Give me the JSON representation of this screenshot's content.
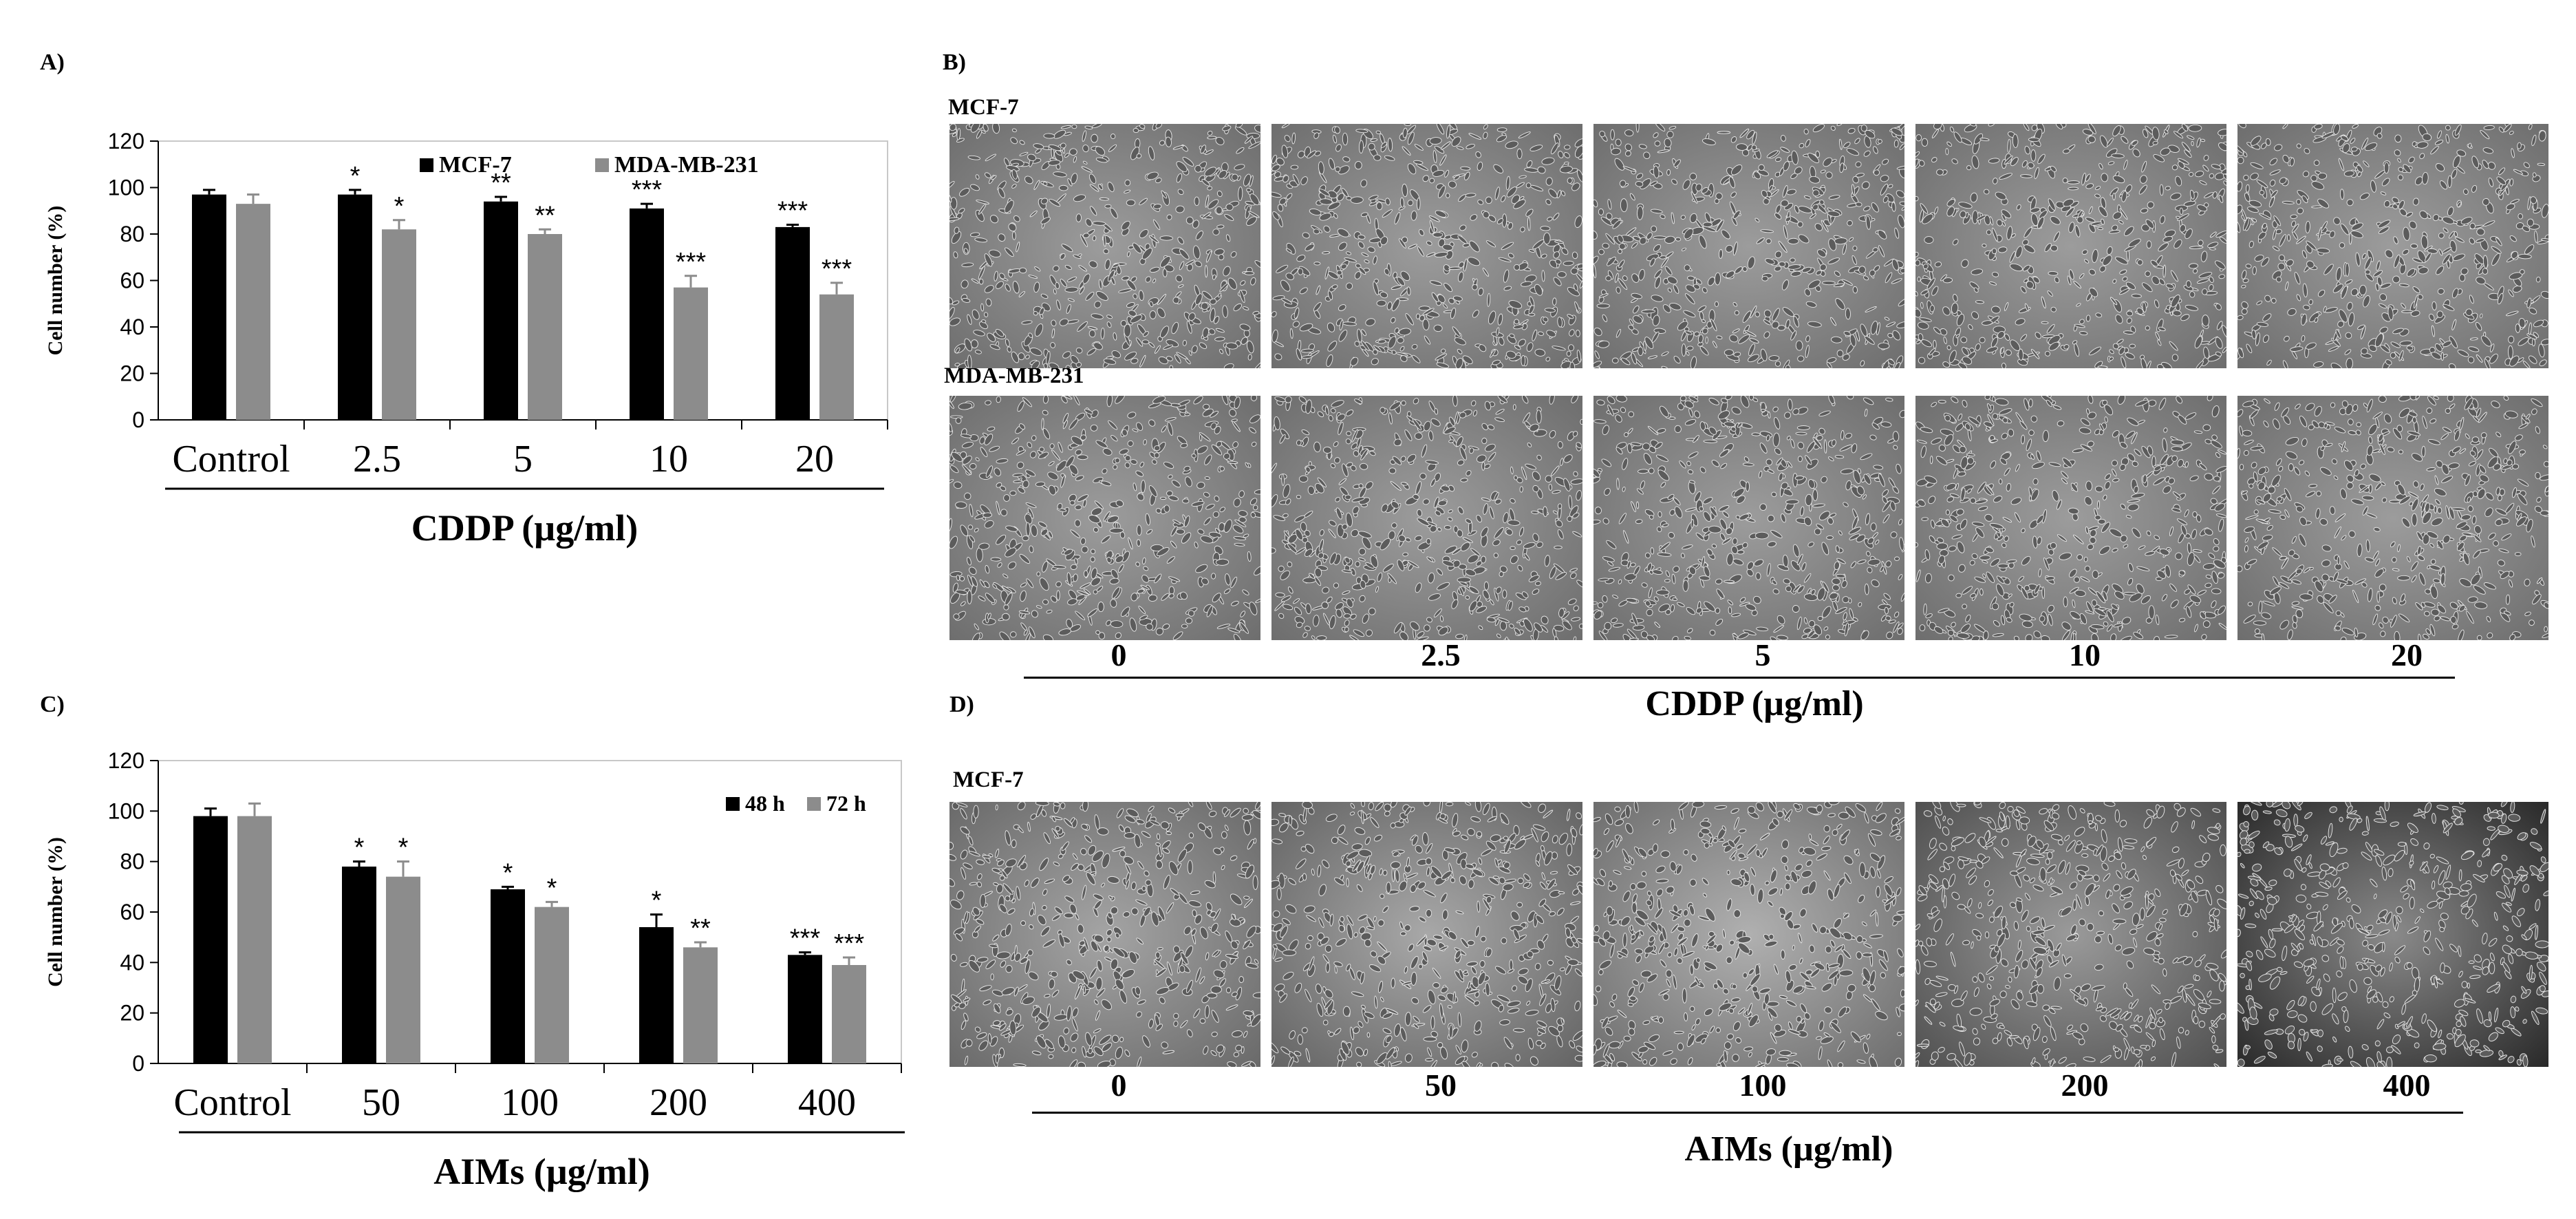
{
  "panels": {
    "a": "A)",
    "b": "B)",
    "c": "C)",
    "d": "D)"
  },
  "panel_b": {
    "row_labels": [
      "MCF-7",
      "MDA-MB-231"
    ],
    "concentrations": [
      "0",
      "2.5",
      "5",
      "10",
      "20"
    ],
    "axis_title": "CDDP (µg/ml)"
  },
  "panel_d": {
    "row_label": "MCF-7",
    "concentrations": [
      "0",
      "50",
      "100",
      "200",
      "400"
    ],
    "axis_title": "AIMs (µg/ml)"
  },
  "chart_data": [
    {
      "type": "bar",
      "panel": "A",
      "categories": [
        "Control",
        "2.5",
        "5",
        "10",
        "20"
      ],
      "category_title": "CDDP (µg/ml)",
      "ylabel": "Cell number (%)",
      "ylim": [
        0,
        120
      ],
      "yticks": [
        0,
        20,
        40,
        60,
        80,
        100,
        120
      ],
      "legend_position": "top-right",
      "series": [
        {
          "name": "MCF-7",
          "color": "#000000",
          "values": [
            97,
            97,
            94,
            91,
            83
          ],
          "errors": [
            2,
            2,
            2,
            2,
            1
          ],
          "significance": [
            "",
            "*",
            "**",
            "***",
            "***"
          ]
        },
        {
          "name": "MDA-MB-231",
          "color": "#8c8c8c",
          "values": [
            93,
            82,
            80,
            57,
            54
          ],
          "errors": [
            4,
            4,
            2,
            5,
            5
          ],
          "significance": [
            "",
            "*",
            "**",
            "***",
            "***"
          ]
        }
      ]
    },
    {
      "type": "bar",
      "panel": "C",
      "categories": [
        "Control",
        "50",
        "100",
        "200",
        "400"
      ],
      "category_title": "AIMs (µg/ml)",
      "ylabel": "Cell number (%)",
      "ylim": [
        0,
        120
      ],
      "yticks": [
        0,
        20,
        40,
        60,
        80,
        100,
        120
      ],
      "legend_position": "top-right",
      "series": [
        {
          "name": "48 h",
          "color": "#000000",
          "values": [
            98,
            78,
            69,
            54,
            43
          ],
          "errors": [
            3,
            2,
            1,
            5,
            1
          ],
          "significance": [
            "",
            "*",
            "*",
            "*",
            "***"
          ]
        },
        {
          "name": "72 h",
          "color": "#8c8c8c",
          "values": [
            98,
            74,
            62,
            46,
            39
          ],
          "errors": [
            5,
            6,
            2,
            2,
            3
          ],
          "significance": [
            "",
            "*",
            "*",
            "**",
            "***"
          ]
        }
      ]
    }
  ]
}
